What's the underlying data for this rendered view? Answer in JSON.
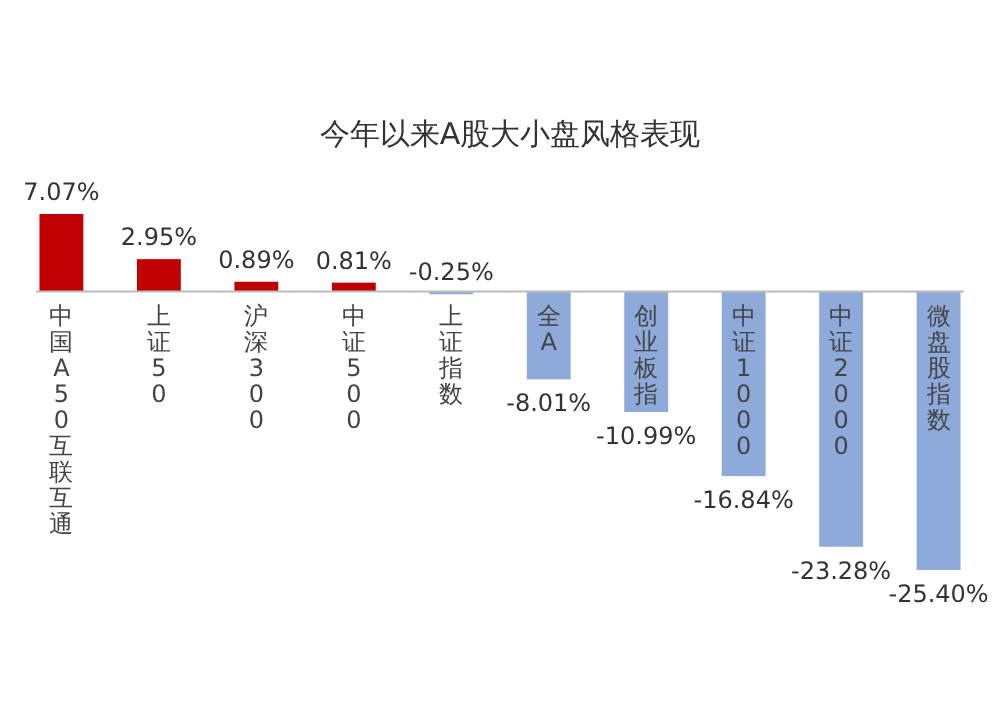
{
  "chart_data": {
    "type": "bar",
    "title": "今年以来A股大小盘风格表现",
    "categories": [
      "中国A50互联互通",
      "上证50",
      "沪深300",
      "中证500",
      "上证指数",
      "全A",
      "创业板指",
      "中证1000",
      "中证2000",
      "微盘股指数"
    ],
    "values": [
      7.07,
      2.95,
      0.89,
      0.81,
      -0.25,
      -8.01,
      -10.99,
      -16.84,
      -23.28,
      -25.4
    ],
    "value_labels": [
      "7.07%",
      "2.95%",
      "0.89%",
      "0.81%",
      "-0.25%",
      "-8.01%",
      "-10.99%",
      "-16.84%",
      "-23.28%",
      "-25.40%"
    ],
    "colors": [
      "#c00000",
      "#c00000",
      "#c00000",
      "#c00000",
      "#8eaadb",
      "#8eaadb",
      "#8eaadb",
      "#8eaadb",
      "#8eaadb",
      "#8eaadb"
    ]
  }
}
